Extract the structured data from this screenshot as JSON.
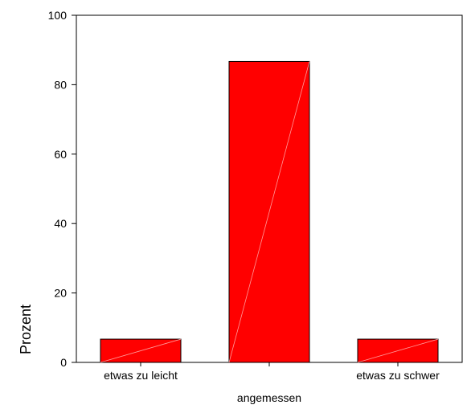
{
  "chart_data": {
    "type": "bar",
    "categories": [
      "etwas zu leicht",
      "angemessen",
      "etwas zu schwer"
    ],
    "values": [
      6.7,
      86.7,
      6.7
    ],
    "ylabel": "Prozent",
    "ylim": [
      0,
      100
    ],
    "yticks": [
      0,
      20,
      40,
      60,
      80,
      100
    ],
    "grid": false,
    "bar_color": "#ff0000"
  }
}
